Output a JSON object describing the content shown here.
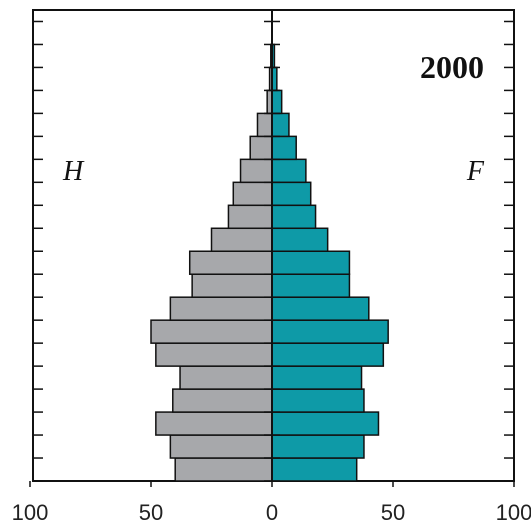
{
  "chart_data": {
    "type": "bar",
    "subtype": "population-pyramid",
    "title": "2000",
    "left_label": "H",
    "right_label": "F",
    "colors": {
      "left": "#a7a8ab",
      "right": "#0e9aa7",
      "edge": "#111111"
    },
    "x_ticks": [
      "100",
      "50",
      "0",
      "50",
      "100"
    ],
    "xlim": [
      -100,
      100
    ],
    "bars_bottom_to_top": {
      "H": [
        40,
        42,
        48,
        41,
        38,
        48,
        50,
        42,
        33,
        34,
        25,
        18,
        16,
        13,
        9,
        6,
        2,
        1,
        0.5,
        0
      ],
      "F": [
        35,
        38,
        44,
        38,
        37,
        46,
        48,
        40,
        32,
        32,
        23,
        18,
        16,
        14,
        10,
        7,
        4,
        2,
        1,
        0
      ]
    },
    "grid": false
  }
}
